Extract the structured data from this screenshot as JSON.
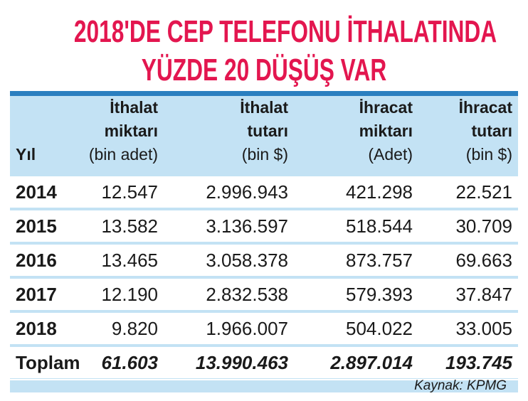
{
  "title": [
    "2018'DE CEP TELEFONU İTHALATINDA",
    "YÜZDE 20 DÜŞÜŞ VAR"
  ],
  "table": {
    "header": [
      [
        "Yıl"
      ],
      [
        "İthalat",
        "miktarı",
        "(bin adet)"
      ],
      [
        "İthalat",
        "tutarı",
        "(bin $)"
      ],
      [
        "İhracat",
        "miktarı",
        "(Adet)"
      ],
      [
        "İhracat",
        "tutarı",
        "(bin $)"
      ]
    ],
    "rows": [
      [
        "2014",
        "12.547",
        "2.996.943",
        "421.298",
        "22.521"
      ],
      [
        "2015",
        "13.582",
        "3.136.597",
        "518.544",
        "30.709"
      ],
      [
        "2016",
        "13.465",
        "3.058.378",
        "873.757",
        "69.663"
      ],
      [
        "2017",
        "12.190",
        "2.832.538",
        "579.393",
        "37.847"
      ],
      [
        "2018",
        "9.820",
        "1.966.007",
        "504.022",
        "33.005"
      ]
    ],
    "total": [
      "Toplam",
      "61.603",
      "13.990.463",
      "2.897.014",
      "193.745"
    ]
  },
  "source": "Kaynak: KPMG"
}
